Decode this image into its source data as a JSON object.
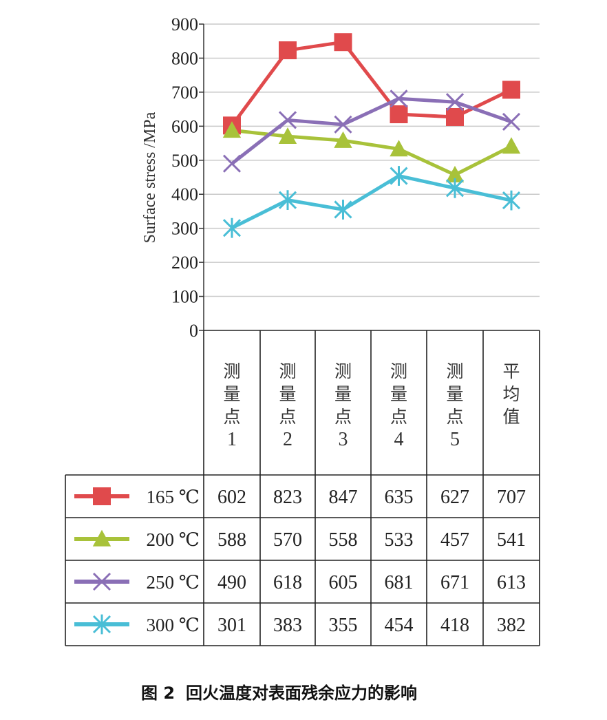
{
  "chart_data": {
    "type": "line",
    "ylabel": "Surface stress /MPa",
    "ylim": [
      0,
      900
    ],
    "yticks": [
      "0",
      "100",
      "200",
      "300",
      "400",
      "500",
      "600",
      "700",
      "800",
      "900"
    ],
    "grid": "horizontal",
    "legend": "in table, left",
    "categories": [
      [
        "测",
        "量",
        "点",
        "1"
      ],
      [
        "测",
        "量",
        "点",
        "2"
      ],
      [
        "测",
        "量",
        "点",
        "3"
      ],
      [
        "测",
        "量",
        "点",
        "4"
      ],
      [
        "测",
        "量",
        "点",
        "5"
      ],
      [
        "平",
        "均",
        "值"
      ]
    ],
    "series": [
      {
        "name": "165 ℃",
        "marker": "square",
        "color": "#e04a4c",
        "values": [
          602,
          823,
          847,
          635,
          627,
          707
        ],
        "labels": [
          "602",
          "823",
          "847",
          "635",
          "627",
          "707"
        ]
      },
      {
        "name": "200 ℃",
        "marker": "triangle",
        "color": "#a8c23a",
        "values": [
          588,
          570,
          558,
          533,
          457,
          541
        ],
        "labels": [
          "588",
          "570",
          "558",
          "533",
          "457",
          "541"
        ]
      },
      {
        "name": "250 ℃",
        "marker": "x",
        "color": "#8a6fb6",
        "values": [
          490,
          618,
          605,
          681,
          671,
          613
        ],
        "labels": [
          "490",
          "618",
          "605",
          "681",
          "671",
          "613"
        ]
      },
      {
        "name": "300 ℃",
        "marker": "star",
        "color": "#49bed6",
        "values": [
          301,
          383,
          355,
          454,
          418,
          382
        ],
        "labels": [
          "301",
          "383",
          "355",
          "454",
          "418",
          "382"
        ]
      }
    ]
  },
  "caption": {
    "number": "图 2",
    "text": "回火温度对表面残余应力的影响"
  }
}
